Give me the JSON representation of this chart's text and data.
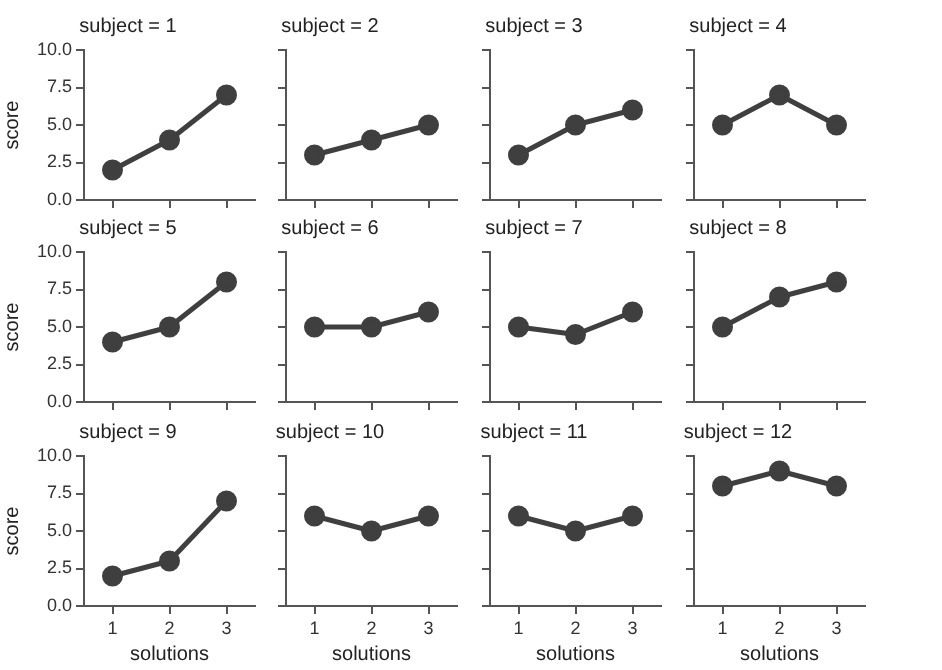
{
  "chart_data": [
    {
      "type": "line",
      "title": "subject = 1",
      "categories": [
        "1",
        "2",
        "3"
      ],
      "values": [
        2,
        4,
        7
      ],
      "color": "#3f3f3f",
      "marker": "circle",
      "ylim": [
        0,
        10
      ],
      "yticks": [
        {
          "value": 0,
          "label": "0.0"
        },
        {
          "value": 2.5,
          "label": "2.5"
        },
        {
          "value": 5,
          "label": "5.0"
        },
        {
          "value": 7.5,
          "label": "7.5"
        },
        {
          "value": 10,
          "label": "10.0"
        }
      ],
      "ylabel": "score",
      "tick_labels": "y"
    },
    {
      "type": "line",
      "title": "subject = 2",
      "categories": [
        "1",
        "2",
        "3"
      ],
      "values": [
        3,
        4,
        5
      ],
      "color": "#3f3f3f",
      "marker": "circle",
      "ylim": [
        0,
        10
      ],
      "yticks": [
        {
          "value": 0,
          "label": null
        },
        {
          "value": 2.5,
          "label": null
        },
        {
          "value": 5,
          "label": null
        },
        {
          "value": 7.5,
          "label": null
        },
        {
          "value": 10,
          "label": null
        }
      ],
      "tick_labels": false
    },
    {
      "type": "line",
      "title": "subject = 3",
      "categories": [
        "1",
        "2",
        "3"
      ],
      "values": [
        3,
        5,
        6
      ],
      "color": "#3f3f3f",
      "marker": "circle",
      "ylim": [
        0,
        10
      ],
      "yticks": [
        {
          "value": 0,
          "label": null
        },
        {
          "value": 2.5,
          "label": null
        },
        {
          "value": 5,
          "label": null
        },
        {
          "value": 7.5,
          "label": null
        },
        {
          "value": 10,
          "label": null
        }
      ],
      "tick_labels": false
    },
    {
      "type": "line",
      "title": "subject = 4",
      "categories": [
        "1",
        "2",
        "3"
      ],
      "values": [
        5,
        7,
        5
      ],
      "color": "#3f3f3f",
      "marker": "circle",
      "ylim": [
        0,
        10
      ],
      "yticks": [
        {
          "value": 0,
          "label": null
        },
        {
          "value": 2.5,
          "label": null
        },
        {
          "value": 5,
          "label": null
        },
        {
          "value": 7.5,
          "label": null
        },
        {
          "value": 10,
          "label": null
        }
      ],
      "tick_labels": false
    },
    {
      "type": "line",
      "title": "subject = 5",
      "categories": [
        "1",
        "2",
        "3"
      ],
      "values": [
        4,
        5,
        8
      ],
      "color": "#3f3f3f",
      "marker": "circle",
      "ylim": [
        0,
        10
      ],
      "yticks": [
        {
          "value": 0,
          "label": "0.0"
        },
        {
          "value": 2.5,
          "label": "2.5"
        },
        {
          "value": 5,
          "label": "5.0"
        },
        {
          "value": 7.5,
          "label": "7.5"
        },
        {
          "value": 10,
          "label": "10.0"
        }
      ],
      "ylabel": "score",
      "tick_labels": "y"
    },
    {
      "type": "line",
      "title": "subject = 6",
      "categories": [
        "1",
        "2",
        "3"
      ],
      "values": [
        5,
        5,
        6
      ],
      "color": "#3f3f3f",
      "marker": "circle",
      "ylim": [
        0,
        10
      ],
      "yticks": [
        {
          "value": 0,
          "label": null
        },
        {
          "value": 2.5,
          "label": null
        },
        {
          "value": 5,
          "label": null
        },
        {
          "value": 7.5,
          "label": null
        },
        {
          "value": 10,
          "label": null
        }
      ],
      "tick_labels": false
    },
    {
      "type": "line",
      "title": "subject = 7",
      "categories": [
        "1",
        "2",
        "3"
      ],
      "values": [
        5,
        4.5,
        6
      ],
      "color": "#3f3f3f",
      "marker": "circle",
      "ylim": [
        0,
        10
      ],
      "yticks": [
        {
          "value": 0,
          "label": null
        },
        {
          "value": 2.5,
          "label": null
        },
        {
          "value": 5,
          "label": null
        },
        {
          "value": 7.5,
          "label": null
        },
        {
          "value": 10,
          "label": null
        }
      ],
      "tick_labels": false
    },
    {
      "type": "line",
      "title": "subject = 8",
      "categories": [
        "1",
        "2",
        "3"
      ],
      "values": [
        5,
        7,
        8
      ],
      "color": "#3f3f3f",
      "marker": "circle",
      "ylim": [
        0,
        10
      ],
      "yticks": [
        {
          "value": 0,
          "label": null
        },
        {
          "value": 2.5,
          "label": null
        },
        {
          "value": 5,
          "label": null
        },
        {
          "value": 7.5,
          "label": null
        },
        {
          "value": 10,
          "label": null
        }
      ],
      "tick_labels": false
    },
    {
      "type": "line",
      "title": "subject = 9",
      "categories": [
        "1",
        "2",
        "3"
      ],
      "values": [
        2,
        3,
        7
      ],
      "color": "#3f3f3f",
      "marker": "circle",
      "ylim": [
        0,
        10
      ],
      "yticks": [
        {
          "value": 0,
          "label": "0.0"
        },
        {
          "value": 2.5,
          "label": "2.5"
        },
        {
          "value": 5,
          "label": "5.0"
        },
        {
          "value": 7.5,
          "label": "7.5"
        },
        {
          "value": 10,
          "label": "10.0"
        }
      ],
      "ylabel": "score",
      "xlabel": "solutions"
    },
    {
      "type": "line",
      "title": "subject = 10",
      "categories": [
        "1",
        "2",
        "3"
      ],
      "values": [
        6,
        5,
        6
      ],
      "color": "#3f3f3f",
      "marker": "circle",
      "ylim": [
        0,
        10
      ],
      "yticks": [
        {
          "value": 0,
          "label": null
        },
        {
          "value": 2.5,
          "label": null
        },
        {
          "value": 5,
          "label": null
        },
        {
          "value": 7.5,
          "label": null
        },
        {
          "value": 10,
          "label": null
        }
      ],
      "xlabel": "solutions",
      "tick_labels": "x"
    },
    {
      "type": "line",
      "title": "subject = 11",
      "categories": [
        "1",
        "2",
        "3"
      ],
      "values": [
        6,
        5,
        6
      ],
      "color": "#3f3f3f",
      "marker": "circle",
      "ylim": [
        0,
        10
      ],
      "yticks": [
        {
          "value": 0,
          "label": null
        },
        {
          "value": 2.5,
          "label": null
        },
        {
          "value": 5,
          "label": null
        },
        {
          "value": 7.5,
          "label": null
        },
        {
          "value": 10,
          "label": null
        }
      ],
      "xlabel": "solutions",
      "tick_labels": "x"
    },
    {
      "type": "line",
      "title": "subject = 12",
      "categories": [
        "1",
        "2",
        "3"
      ],
      "values": [
        8,
        9,
        8
      ],
      "color": "#3f3f3f",
      "marker": "circle",
      "ylim": [
        0,
        10
      ],
      "yticks": [
        {
          "value": 0,
          "label": null
        },
        {
          "value": 2.5,
          "label": null
        },
        {
          "value": 5,
          "label": null
        },
        {
          "value": 7.5,
          "label": null
        },
        {
          "value": 10,
          "label": null
        }
      ],
      "xlabel": "solutions",
      "tick_labels": "x"
    }
  ]
}
